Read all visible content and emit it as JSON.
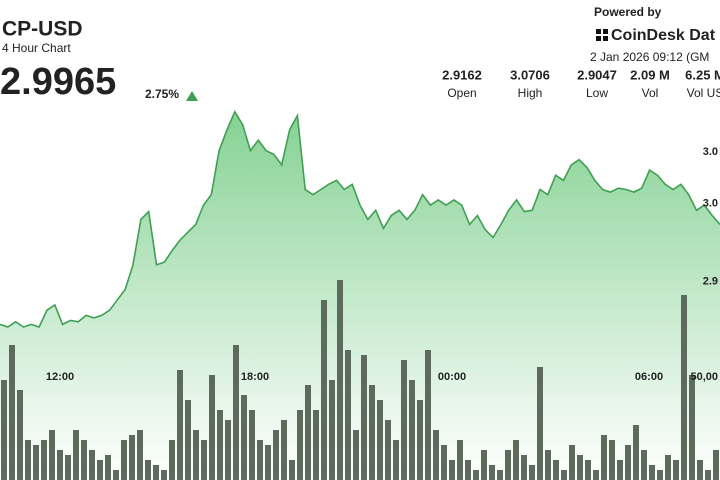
{
  "header": {
    "symbol": "CP-USD",
    "subtitle": "4 Hour Chart",
    "price": "2.9965",
    "change": "2.75%",
    "powered_by": "Powered by",
    "brand": "CoinDesk Dat",
    "timestamp": "2 Jan 2026 09:12 (GM",
    "stats": [
      {
        "value": "2.9162",
        "label": "Open"
      },
      {
        "value": "3.0706",
        "label": "High"
      },
      {
        "value": "2.9047",
        "label": "Low"
      },
      {
        "value": "2.09 M",
        "label": "Vol"
      },
      {
        "value": "6.25 M",
        "label": "Vol US"
      }
    ]
  },
  "chart_data": {
    "type": "line",
    "color": "#3f9f52",
    "values": [
      2.907,
      2.905,
      2.909,
      2.905,
      2.907,
      2.905,
      2.918,
      2.922,
      2.907,
      2.91,
      2.909,
      2.914,
      2.912,
      2.914,
      2.918,
      2.926,
      2.934,
      2.953,
      2.988,
      2.994,
      2.953,
      2.955,
      2.964,
      2.972,
      2.978,
      2.984,
      2.999,
      3.007,
      3.041,
      3.057,
      3.071,
      3.061,
      3.041,
      3.049,
      3.041,
      3.038,
      3.03,
      3.057,
      3.068,
      3.011,
      3.007,
      3.011,
      3.015,
      3.018,
      3.011,
      3.015,
      2.999,
      2.988,
      2.995,
      2.981,
      2.991,
      2.995,
      2.988,
      2.995,
      3.007,
      2.999,
      3.003,
      2.999,
      3.003,
      2.999,
      2.984,
      2.991,
      2.98,
      2.974,
      2.984,
      2.995,
      3.003,
      2.994,
      2.995,
      3.011,
      3.007,
      3.022,
      3.018,
      3.03,
      3.034,
      3.028,
      3.018,
      3.011,
      3.009,
      3.012,
      3.011,
      3.009,
      3.012,
      3.026,
      3.022,
      3.015,
      3.011,
      3.015,
      3.007,
      2.995,
      2.999,
      2.991,
      2.984
    ],
    "ylim": [
      2.895,
      3.08
    ],
    "yticks": [
      {
        "value": 3.04,
        "label": "3.0"
      },
      {
        "value": 3.0,
        "label": "3.0"
      },
      {
        "value": 2.94,
        "label": "2.9"
      }
    ],
    "x_labels": [
      "12:00",
      "18:00",
      "00:00",
      "06:00"
    ],
    "volume": {
      "color": "#5d6b5c",
      "ylim": [
        0,
        100000
      ],
      "yticks": [
        {
          "value": 50000,
          "label": "50,00"
        }
      ],
      "values": [
        50000,
        67500,
        45000,
        20000,
        17500,
        20000,
        25000,
        15000,
        12500,
        25000,
        20000,
        15000,
        10000,
        12500,
        5000,
        20000,
        22500,
        25000,
        10000,
        7500,
        5000,
        20000,
        55000,
        40000,
        25000,
        20000,
        52500,
        35000,
        30000,
        67500,
        42500,
        35000,
        20000,
        17500,
        25000,
        30000,
        10000,
        35000,
        47500,
        35000,
        90000,
        50000,
        100000,
        65000,
        25000,
        62500,
        47500,
        40000,
        30000,
        20000,
        60000,
        50000,
        40000,
        65000,
        25000,
        17500,
        10000,
        20000,
        10000,
        5000,
        15000,
        7500,
        5000,
        15000,
        20000,
        12500,
        7500,
        56500,
        15000,
        10000,
        5000,
        17500,
        12500,
        10000,
        5000,
        22500,
        20000,
        10000,
        17500,
        27500,
        15000,
        7500,
        5000,
        12500,
        10000,
        92500,
        52500,
        10000,
        5000,
        15000
      ]
    }
  }
}
